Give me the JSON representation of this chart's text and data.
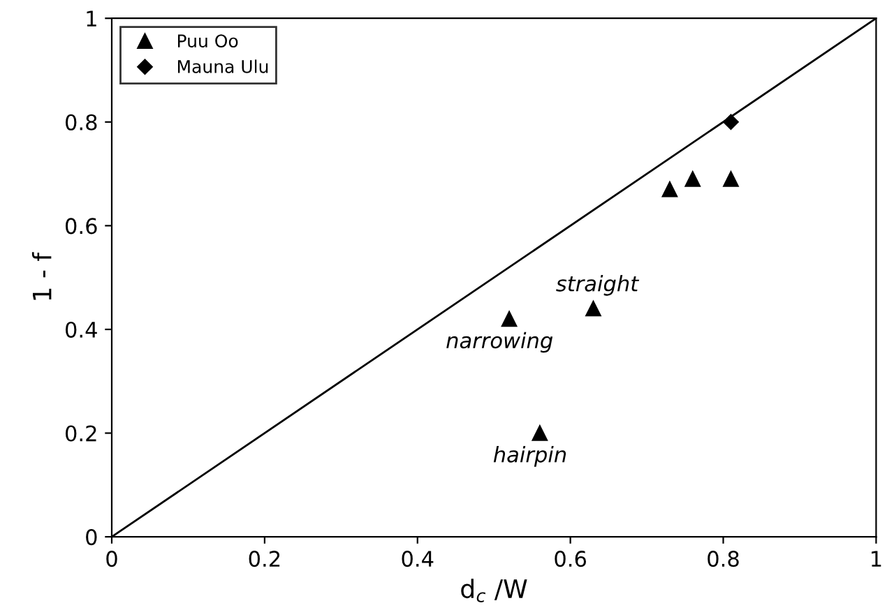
{
  "chart_data": {
    "type": "scatter",
    "xlabel": "d$_{c}$ /W",
    "ylabel": "1 - f",
    "series": [
      {
        "name": "Puu Oo",
        "color": "#000000",
        "marker": "triangle",
        "x": [
          0.52,
          0.56,
          0.63,
          0.73,
          0.76,
          0.81
        ],
        "values": [
          0.42,
          0.2,
          0.44,
          0.67,
          0.69,
          0.69
        ]
      },
      {
        "name": "Mauna Ulu",
        "color": "#000000",
        "marker": "diamond",
        "x": [
          0.81
        ],
        "values": [
          0.8
        ]
      },
      {
        "type": "line",
        "color": "#000000",
        "marker": "none",
        "x": [
          0,
          1
        ],
        "values": [
          0,
          1
        ]
      }
    ],
    "annotations": [
      {
        "text": "narrowing",
        "x": 0.52,
        "y": 0.42
      },
      {
        "text": "straight",
        "x": 0.63,
        "y": 0.44
      },
      {
        "text": "hairpin",
        "x": 0.56,
        "y": 0.2
      }
    ],
    "xlim": [
      0,
      1
    ],
    "ylim": [
      0,
      1
    ],
    "xticks": [
      0,
      0.2,
      0.4,
      0.6,
      0.8,
      1
    ],
    "yticks": [
      0,
      0.2,
      0.4,
      0.6,
      0.8,
      1
    ],
    "grid": false,
    "legend": "top left"
  }
}
